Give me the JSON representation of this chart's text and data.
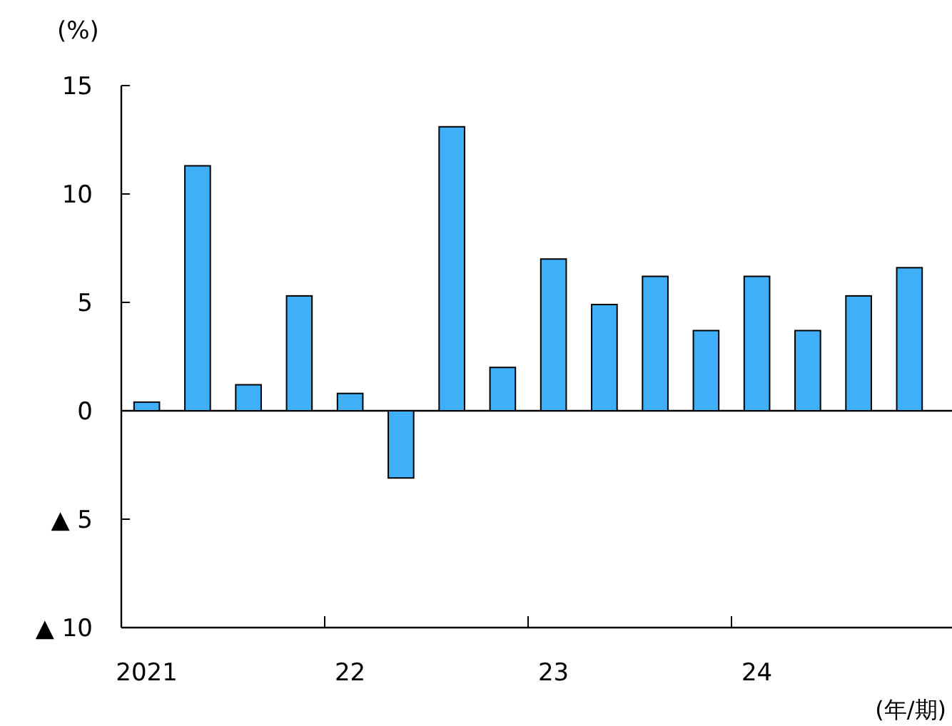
{
  "chart_data": {
    "type": "bar",
    "ylabel": "(%)",
    "annotations": [
      "(年/期)"
    ],
    "categories": [
      "2021",
      null,
      null,
      null,
      "22",
      null,
      null,
      null,
      "23",
      null,
      null,
      null,
      "24",
      null,
      null,
      null
    ],
    "values": [
      0.4,
      11.3,
      1.2,
      5.3,
      0.8,
      -3.1,
      13.1,
      2.0,
      7.0,
      4.9,
      6.2,
      3.7,
      6.2,
      3.7,
      5.3,
      6.6
    ],
    "color": "#3fb0f7",
    "ylim": [
      -10,
      15
    ],
    "yticks": [
      {
        "value": -10,
        "label": "▲ 10"
      },
      {
        "value": -5,
        "label": "▲ 5"
      },
      0,
      5,
      10,
      15
    ],
    "ref_lines": [
      {
        "axis": "y",
        "value": 0,
        "color": "#000000"
      }
    ],
    "grid": false
  }
}
